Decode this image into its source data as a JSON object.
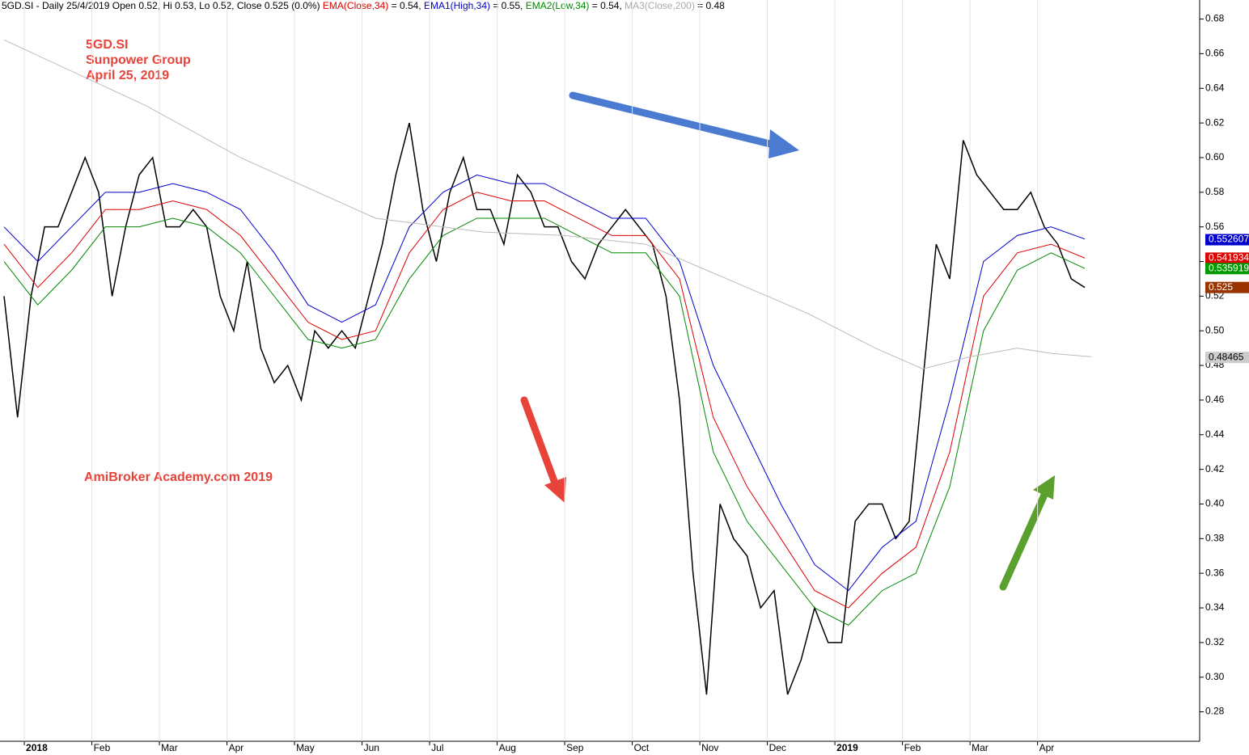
{
  "chart_data": {
    "type": "line",
    "header": [
      {
        "text": "5GD.SI - Daily 25/4/2019 Open 0.52, Hi 0.53, Lo 0.52, Close 0.525 (0.0%) ",
        "color": "#000000"
      },
      {
        "text": "EMA(Close,34)",
        "color": "#dd0000"
      },
      {
        "text": " = 0.54, ",
        "color": "#000000"
      },
      {
        "text": "EMA1(High,34)",
        "color": "#0000cc"
      },
      {
        "text": " = 0.55, ",
        "color": "#000000"
      },
      {
        "text": "EMA2(Low,34)",
        "color": "#008800"
      },
      {
        "text": " = 0.54, ",
        "color": "#000000"
      },
      {
        "text": "MA3(Close,200)",
        "color": "#aaaaaa"
      },
      {
        "text": " = 0.48",
        "color": "#000000"
      }
    ],
    "annotations": [
      "5GD.SI",
      "Sunpower Group",
      "April 25, 2019",
      "AmiBroker Academy.com   2019"
    ],
    "xlim": [
      -0.36,
      17.4
    ],
    "ylim": [
      0.263,
      0.691
    ],
    "xticks": [
      {
        "value": 0,
        "label": "2018"
      },
      {
        "value": 1,
        "label": "Feb"
      },
      {
        "value": 2,
        "label": "Mar"
      },
      {
        "value": 3,
        "label": "Apr"
      },
      {
        "value": 4,
        "label": "May"
      },
      {
        "value": 5,
        "label": "Jun"
      },
      {
        "value": 6,
        "label": "Jul"
      },
      {
        "value": 7,
        "label": "Aug"
      },
      {
        "value": 8,
        "label": "Sep"
      },
      {
        "value": 9,
        "label": "Oct"
      },
      {
        "value": 10,
        "label": "Nov"
      },
      {
        "value": 11,
        "label": "Dec"
      },
      {
        "value": 12,
        "label": "2019"
      },
      {
        "value": 13,
        "label": "Feb"
      },
      {
        "value": 14,
        "label": "Mar"
      },
      {
        "value": 15,
        "label": "Apr"
      }
    ],
    "yticks": [
      0.28,
      {
        "value": 0.3,
        "label": "0.30"
      },
      0.32,
      0.34,
      0.36,
      0.38,
      {
        "value": 0.4,
        "label": "0.40"
      },
      0.42,
      0.44,
      0.46,
      0.48,
      {
        "value": 0.5,
        "label": "0.50"
      },
      0.52,
      0.54,
      0.56,
      0.58,
      {
        "value": 0.6,
        "label": "0.60"
      },
      0.62,
      0.64,
      0.66,
      0.68
    ],
    "series": [
      {
        "name": "Close",
        "color": "#000000",
        "last_value": 0.525,
        "label_color": "#993300",
        "x": [
          -0.3,
          -0.1,
          0.1,
          0.3,
          0.5,
          0.7,
          0.9,
          1.1,
          1.3,
          1.5,
          1.7,
          1.9,
          2.1,
          2.3,
          2.5,
          2.7,
          2.9,
          3.1,
          3.3,
          3.5,
          3.7,
          3.9,
          4.1,
          4.3,
          4.5,
          4.7,
          4.9,
          5.1,
          5.3,
          5.5,
          5.7,
          5.9,
          6.1,
          6.3,
          6.5,
          6.7,
          6.9,
          7.1,
          7.3,
          7.5,
          7.7,
          7.9,
          8.1,
          8.3,
          8.5,
          8.7,
          8.9,
          9.1,
          9.3,
          9.5,
          9.7,
          9.9,
          10.1,
          10.3,
          10.5,
          10.7,
          10.9,
          11.1,
          11.3,
          11.5,
          11.7,
          11.9,
          12.1,
          12.3,
          12.5,
          12.7,
          12.9,
          13.1,
          13.3,
          13.5,
          13.7,
          13.9,
          14.1,
          14.3,
          14.5,
          14.7,
          14.9,
          15.1,
          15.3,
          15.5,
          15.7
        ],
        "values": [
          0.52,
          0.45,
          0.52,
          0.56,
          0.56,
          0.58,
          0.6,
          0.58,
          0.52,
          0.56,
          0.59,
          0.6,
          0.56,
          0.56,
          0.57,
          0.56,
          0.52,
          0.5,
          0.54,
          0.49,
          0.47,
          0.48,
          0.46,
          0.5,
          0.49,
          0.5,
          0.49,
          0.52,
          0.55,
          0.59,
          0.62,
          0.57,
          0.54,
          0.58,
          0.6,
          0.57,
          0.57,
          0.55,
          0.59,
          0.58,
          0.56,
          0.56,
          0.54,
          0.53,
          0.55,
          0.56,
          0.57,
          0.56,
          0.55,
          0.52,
          0.46,
          0.36,
          0.29,
          0.4,
          0.38,
          0.37,
          0.34,
          0.35,
          0.29,
          0.31,
          0.34,
          0.32,
          0.32,
          0.39,
          0.4,
          0.4,
          0.38,
          0.39,
          0.47,
          0.55,
          0.53,
          0.61,
          0.59,
          0.58,
          0.57,
          0.57,
          0.58,
          0.56,
          0.55,
          0.53,
          0.525
        ]
      },
      {
        "name": "EMA1(High,34)",
        "color": "#0000cc",
        "last_value": 0.552607,
        "label_color": "#0000cc",
        "x": [
          -0.3,
          0.2,
          0.7,
          1.2,
          1.7,
          2.2,
          2.7,
          3.2,
          3.7,
          4.2,
          4.7,
          5.2,
          5.7,
          6.2,
          6.7,
          7.2,
          7.7,
          8.2,
          8.7,
          9.2,
          9.7,
          10.2,
          10.7,
          11.2,
          11.7,
          12.2,
          12.7,
          13.2,
          13.7,
          14.2,
          14.7,
          15.2,
          15.7
        ],
        "values": [
          0.56,
          0.54,
          0.56,
          0.58,
          0.58,
          0.585,
          0.58,
          0.57,
          0.545,
          0.515,
          0.505,
          0.515,
          0.56,
          0.58,
          0.59,
          0.585,
          0.585,
          0.575,
          0.565,
          0.565,
          0.54,
          0.48,
          0.44,
          0.4,
          0.365,
          0.35,
          0.375,
          0.39,
          0.46,
          0.54,
          0.555,
          0.56,
          0.553
        ]
      },
      {
        "name": "EMA(Close,34)",
        "color": "#dd0000",
        "last_value": 0.541934,
        "label_color": "#dd0000",
        "x": [
          -0.3,
          0.2,
          0.7,
          1.2,
          1.7,
          2.2,
          2.7,
          3.2,
          3.7,
          4.2,
          4.7,
          5.2,
          5.7,
          6.2,
          6.7,
          7.2,
          7.7,
          8.2,
          8.7,
          9.2,
          9.7,
          10.2,
          10.7,
          11.2,
          11.7,
          12.2,
          12.7,
          13.2,
          13.7,
          14.2,
          14.7,
          15.2,
          15.7
        ],
        "values": [
          0.55,
          0.525,
          0.545,
          0.57,
          0.57,
          0.575,
          0.57,
          0.555,
          0.53,
          0.505,
          0.495,
          0.5,
          0.545,
          0.57,
          0.58,
          0.575,
          0.575,
          0.565,
          0.555,
          0.555,
          0.53,
          0.45,
          0.41,
          0.38,
          0.35,
          0.34,
          0.36,
          0.375,
          0.43,
          0.52,
          0.545,
          0.55,
          0.542
        ]
      },
      {
        "name": "EMA2(Low,34)",
        "color": "#008800",
        "last_value": 0.535919,
        "label_color": "#009900",
        "x": [
          -0.3,
          0.2,
          0.7,
          1.2,
          1.7,
          2.2,
          2.7,
          3.2,
          3.7,
          4.2,
          4.7,
          5.2,
          5.7,
          6.2,
          6.7,
          7.2,
          7.7,
          8.2,
          8.7,
          9.2,
          9.7,
          10.2,
          10.7,
          11.2,
          11.7,
          12.2,
          12.7,
          13.2,
          13.7,
          14.2,
          14.7,
          15.2,
          15.7
        ],
        "values": [
          0.54,
          0.515,
          0.535,
          0.56,
          0.56,
          0.565,
          0.56,
          0.545,
          0.52,
          0.495,
          0.49,
          0.495,
          0.53,
          0.555,
          0.565,
          0.565,
          0.565,
          0.555,
          0.545,
          0.545,
          0.52,
          0.43,
          0.39,
          0.365,
          0.34,
          0.33,
          0.35,
          0.36,
          0.41,
          0.5,
          0.535,
          0.545,
          0.536
        ]
      },
      {
        "name": "MA3(Close,200)",
        "color": "#bbbbbb",
        "last_value": 0.48465,
        "label_color": "#cccccc",
        "x": [
          -0.3,
          1.8,
          3.2,
          5.2,
          6.8,
          8.0,
          9.2,
          10.1,
          11.6,
          12.6,
          13.3,
          14.0,
          14.7,
          15.2,
          15.8
        ],
        "values": [
          0.668,
          0.63,
          0.6,
          0.565,
          0.557,
          0.555,
          0.55,
          0.535,
          0.51,
          0.49,
          0.478,
          0.485,
          0.49,
          0.487,
          0.485
        ]
      }
    ]
  }
}
